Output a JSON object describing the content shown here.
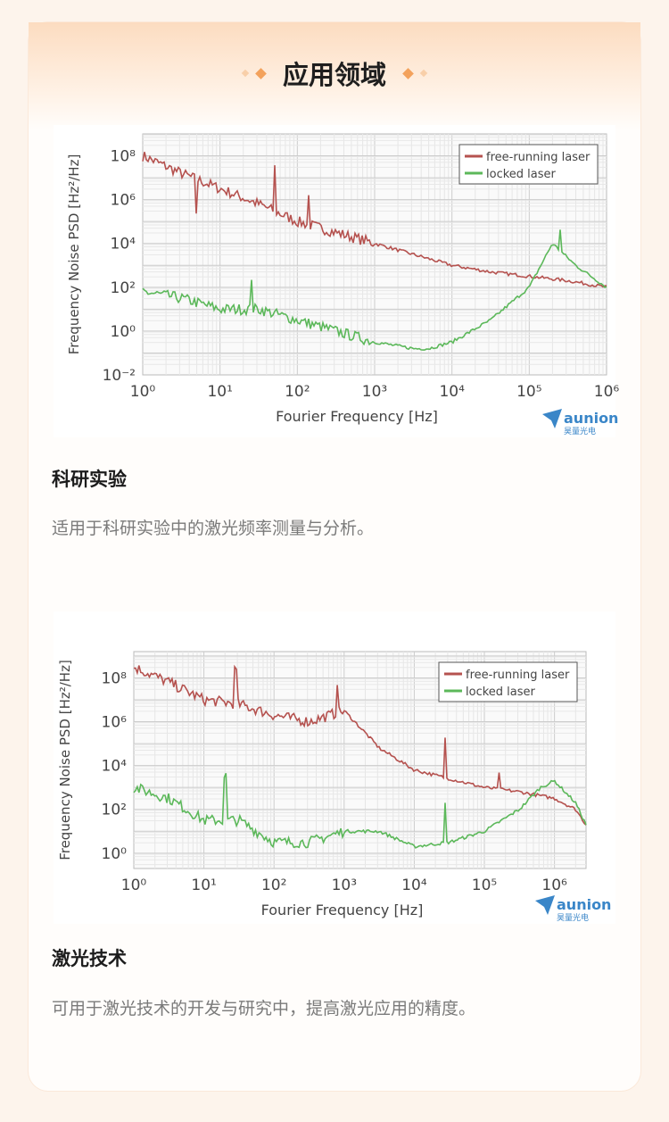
{
  "section_title": "应用领域",
  "watermark": {
    "brand": "aunion",
    "brand_cn": "昊量光电"
  },
  "items": [
    {
      "title": "科研实验",
      "description": "适用于科研实验中的激光频率测量与分析。"
    },
    {
      "title": "激光技术",
      "description": "可用于激光技术的开发与研究中，提高激光应用的精度。"
    }
  ],
  "colors": {
    "free": "#b5524f",
    "locked": "#5cb85a",
    "accent": "#f3a25c"
  },
  "chart_data": [
    {
      "type": "line",
      "xlabel": "Fourier Frequency [Hz]",
      "ylabel": "Frequency Noise PSD [Hz²/Hz]",
      "xscale": "log",
      "yscale": "log",
      "xlim_exp": [
        0,
        6
      ],
      "ylim_exp": [
        -2,
        9
      ],
      "xticks": [
        "10^0",
        "10^1",
        "10^2",
        "10^3",
        "10^4",
        "10^5",
        "10^6"
      ],
      "yticks": [
        "10^-2",
        "10^0",
        "10^2",
        "10^4",
        "10^6",
        "10^8"
      ],
      "grid": true,
      "legend": "top-right",
      "series": [
        {
          "name": "free-running laser",
          "x_exp": [
            0,
            0.5,
            1,
            1.5,
            2,
            2.5,
            3,
            3.5,
            4,
            4.5,
            5,
            5.5,
            6
          ],
          "y_exp": [
            8,
            7.2,
            6.5,
            5.8,
            5,
            4.5,
            4,
            3.5,
            3,
            2.7,
            2.5,
            2.3,
            2
          ]
        },
        {
          "name": "locked laser",
          "x_exp": [
            0,
            0.5,
            1,
            1.5,
            2,
            2.5,
            3,
            3.5,
            3.7,
            4,
            4.5,
            5,
            5.3,
            5.6,
            6
          ],
          "y_exp": [
            1.8,
            1.5,
            1,
            1,
            0.5,
            0,
            -0.5,
            -0.8,
            -0.8,
            -0.5,
            0.5,
            2,
            4,
            3,
            2
          ]
        }
      ],
      "spikes": [
        {
          "series": 0,
          "x_exp": 0.7,
          "dy": -1.5
        },
        {
          "series": 0,
          "x_exp": 1.7,
          "dy": 2
        },
        {
          "series": 0,
          "x_exp": 2.15,
          "dy": 1.3
        },
        {
          "series": 1,
          "x_exp": 5.4,
          "dy": 1
        },
        {
          "series": 1,
          "x_exp": 1.4,
          "dy": 1.5
        }
      ]
    },
    {
      "type": "line",
      "xlabel": "Fourier Frequency [Hz]",
      "ylabel": "Frequency Noise PSD [Hz²/Hz]",
      "xscale": "log",
      "yscale": "log",
      "xlim_exp": [
        0,
        6.45
      ],
      "ylim_exp": [
        -0.7,
        9.2
      ],
      "xticks": [
        "10^0",
        "10^1",
        "10^2",
        "10^3",
        "10^4",
        "10^5",
        "10^6"
      ],
      "yticks": [
        "10^0",
        "10^2",
        "10^4",
        "10^6",
        "10^8"
      ],
      "grid": true,
      "legend": "top-right",
      "series": [
        {
          "name": "free-running laser",
          "x_exp": [
            0,
            0.5,
            1,
            1.5,
            2,
            2.5,
            3,
            3.3,
            3.5,
            4,
            4.5,
            5,
            5.5,
            6,
            6.3,
            6.45
          ],
          "y_exp": [
            8.5,
            7.8,
            7,
            6.8,
            6.3,
            6,
            6.5,
            5.5,
            4.8,
            3.8,
            3.4,
            3,
            2.8,
            2.5,
            2,
            1.3
          ]
        },
        {
          "name": "locked laser",
          "x_exp": [
            0,
            0.5,
            1,
            1.5,
            2,
            2.5,
            3,
            3.5,
            4,
            4.5,
            5,
            5.5,
            5.8,
            6,
            6.3,
            6.45
          ],
          "y_exp": [
            3,
            2.5,
            1.5,
            1.5,
            0.5,
            0.5,
            1,
            1,
            0.3,
            0.5,
            1,
            2,
            3,
            3.3,
            2.3,
            1.3
          ]
        }
      ],
      "spikes": [
        {
          "series": 0,
          "x_exp": 1.45,
          "dy": 1.5
        },
        {
          "series": 0,
          "x_exp": 2.9,
          "dy": 1.5
        },
        {
          "series": 0,
          "x_exp": 4.45,
          "dy": 1.8
        },
        {
          "series": 0,
          "x_exp": 5.2,
          "dy": 0.8
        },
        {
          "series": 1,
          "x_exp": 1.3,
          "dy": 2
        },
        {
          "series": 1,
          "x_exp": 4.45,
          "dy": 1.8
        }
      ]
    }
  ]
}
